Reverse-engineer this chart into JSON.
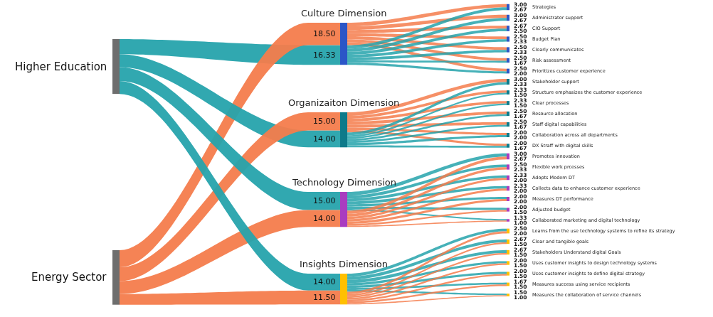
{
  "chart_data": {
    "type": "other",
    "categories": [
      "Culture Dimension",
      "Organizaiton Dimension",
      "Technology Dimension",
      "Insights Dimension",
      "Strategies",
      "Administrator support",
      "CIO Support",
      "Budget Plan",
      "Clearly communicates",
      "Risk assessment",
      "Prioritizes customer experience",
      "Stakeholder support",
      "Structure emphasizes the customer experience",
      "Clear processes",
      "Resource allocation",
      "Staff digital capabilities",
      "Collaboration across all departments",
      "DX Straff with digital skills",
      "Promotes innovation",
      "Flexible work prcesses",
      "Adopts Modern DT",
      "Collects data to enhance customer experience",
      "Measures DT performance",
      "Adjusted budget",
      "Collaborated marketing and digital technology",
      "Learns from the use technology systems to refine its strategy",
      "Clear and tangible goals",
      "Stakeholders Understand digital Goals",
      "Uses customer insights to design technology systems",
      "Uses customer insights to define digital strategy",
      "Measures success using service recipients",
      "Measures the collaboration of service channels"
    ],
    "colors": [
      "#2b56c7",
      "#0e7a8a",
      "#a93cc0",
      "#ffc000",
      "#2b56c7",
      "#2b56c7",
      "#2b56c7",
      "#2b56c7",
      "#2b56c7",
      "#2b56c7",
      "#2b56c7",
      "#0e7a8a",
      "#0e7a8a",
      "#0e7a8a",
      "#0e7a8a",
      "#0e7a8a",
      "#0e7a8a",
      "#0e7a8a",
      "#a93cc0",
      "#a93cc0",
      "#a93cc0",
      "#a93cc0",
      "#a93cc0",
      "#a93cc0",
      "#a93cc0",
      "#ffc000",
      "#ffc000",
      "#ffc000",
      "#ffc000",
      "#ffc000",
      "#ffc000",
      "#ffc000"
    ],
    "series": [
      {
        "name": "Higher Education",
        "color": "#26a3ac",
        "values": [
          16.33,
          14.0,
          15.0,
          14.0,
          2.67,
          2.67,
          2.5,
          2.33,
          2.33,
          1.67,
          2.0,
          2.33,
          1.5,
          1.5,
          1.67,
          1.67,
          2.0,
          1.67,
          3.0,
          2.5,
          2.33,
          2.33,
          2.0,
          2.0,
          1.33,
          2.5,
          2.67,
          2.67,
          2.0,
          2.0,
          1.67,
          1.5
        ],
        "value_labels": [
          "16.33",
          "14.00",
          "15.00",
          "14.00",
          "2.67",
          "2.67",
          "2.50",
          "2.33",
          "2.33",
          "1.67",
          "2.00",
          "2.33",
          "1.50",
          "1.50",
          "1.67",
          "1.67",
          "2.00",
          "1.67",
          "3.00",
          "2.50",
          "2.33",
          "2.33",
          "2.00",
          "2.00",
          "1.33",
          "2.50",
          "2.67",
          "2.67",
          "2.00",
          "2.00",
          "1.67",
          "1.50"
        ]
      },
      {
        "name": "Energy Sector",
        "color": "#f47c4c",
        "values": [
          18.5,
          15.0,
          14.0,
          11.5,
          3.0,
          3.0,
          2.67,
          2.5,
          2.5,
          2.5,
          2.5,
          3.0,
          2.33,
          2.33,
          2.5,
          2.5,
          2.0,
          2.0,
          2.67,
          2.33,
          2.0,
          2.0,
          2.0,
          1.5,
          1.0,
          2.0,
          1.5,
          1.5,
          1.5,
          1.5,
          1.5,
          1.0
        ],
        "value_labels": [
          "18.50",
          "15.00",
          "14.00",
          "11.50",
          "3.00",
          "3.00",
          "2.67",
          "2.50",
          "2.50",
          "2.50",
          "2.50",
          "3.00",
          "2.33",
          "2.33",
          "2.50",
          "2.50",
          "2.00",
          "2.00",
          "2.67",
          "2.33",
          "2.00",
          "2.00",
          "2.00",
          "1.50",
          "1.00",
          "2.00",
          "1.50",
          "1.50",
          "1.50",
          "1.50",
          "1.50",
          "1.00"
        ]
      }
    ]
  }
}
